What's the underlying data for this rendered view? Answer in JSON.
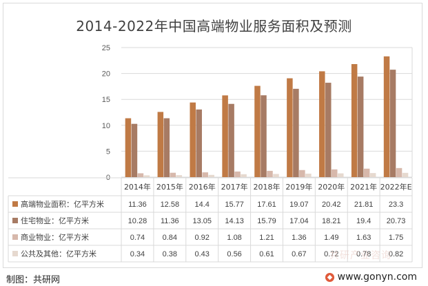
{
  "title": "2014-2022年中国高端物业服务面积及预测",
  "source_label": "制图：共研网",
  "site_label": "www.gonyn.com",
  "watermark_text": "共研产业咨询",
  "colors": {
    "series": [
      "#c07a45",
      "#a77b64",
      "#d7b8ab",
      "#e6d9cf"
    ],
    "grid": "#d9d9d9",
    "text": "#404040"
  },
  "chart_data": {
    "type": "bar",
    "title": "2014-2022年中国高端物业服务面积及预测",
    "categories": [
      "2014年",
      "2015年",
      "2016年",
      "2017年",
      "2018年",
      "2019年",
      "2020年",
      "2021年",
      "2022年E"
    ],
    "ylim": [
      0,
      25
    ],
    "yticks": [
      0,
      5,
      10,
      15,
      20,
      25
    ],
    "grid": true,
    "legend": "table-below",
    "series": [
      {
        "name": "高端物业面积：亿平方米",
        "values": [
          11.36,
          12.58,
          14.4,
          15.77,
          17.61,
          19.07,
          20.42,
          21.81,
          23.3
        ]
      },
      {
        "name": "住宅物业：亿平方米",
        "values": [
          10.28,
          11.36,
          13.05,
          14.13,
          15.79,
          17.04,
          18.21,
          19.4,
          20.73
        ]
      },
      {
        "name": "商业物业：亿平方米",
        "values": [
          0.74,
          0.84,
          0.92,
          1.08,
          1.21,
          1.36,
          1.49,
          1.63,
          1.75
        ]
      },
      {
        "name": "公共及其他：亿平方米",
        "values": [
          0.34,
          0.38,
          0.43,
          0.56,
          0.61,
          0.67,
          0.72,
          0.78,
          0.82
        ]
      }
    ],
    "table_values": [
      [
        "11.36",
        "12.58",
        "14.4",
        "15.77",
        "17.61",
        "19.07",
        "20.42",
        "21.81",
        "23.3"
      ],
      [
        "10.28",
        "11.36",
        "13.05",
        "14.13",
        "15.79",
        "17.04",
        "18.21",
        "19.4",
        "20.73"
      ],
      [
        "0.74",
        "0.84",
        "0.92",
        "1.08",
        "1.21",
        "1.36",
        "1.49",
        "1.63",
        "1.75"
      ],
      [
        "0.34",
        "0.38",
        "0.43",
        "0.56",
        "0.61",
        "0.67",
        "0.72",
        "0.78",
        "0.82"
      ]
    ]
  }
}
